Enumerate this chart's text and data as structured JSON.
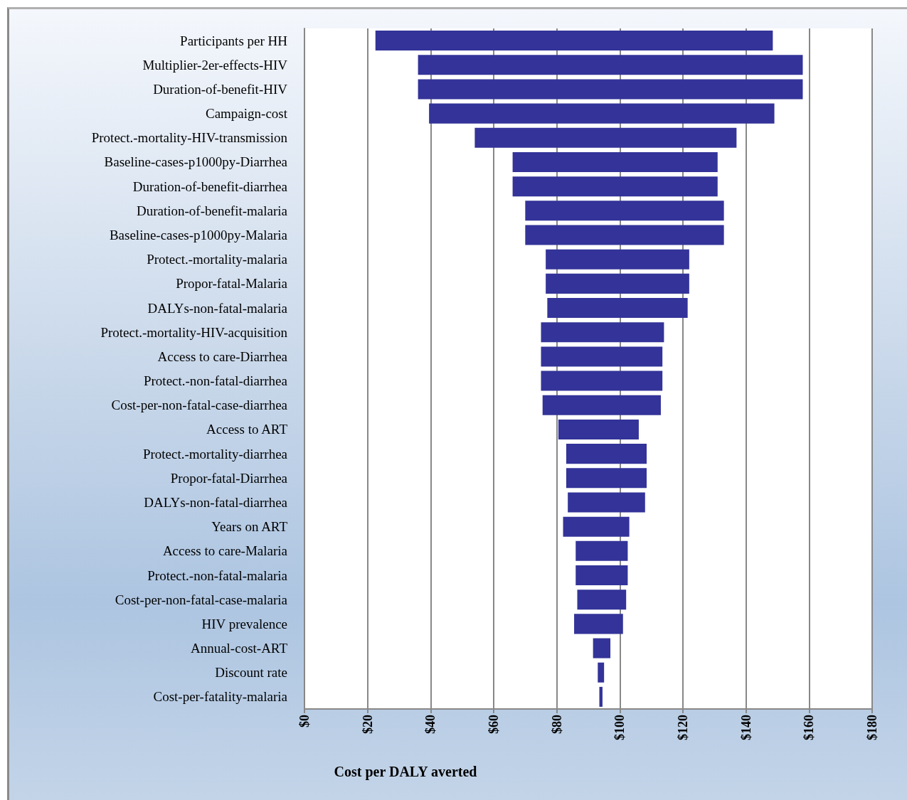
{
  "chart_data": {
    "type": "bar",
    "orientation": "horizontal",
    "xlabel": "Cost per DALY averted",
    "categories": [
      "Participants per HH",
      "Multiplier-2er-effects-HIV",
      "Duration-of-benefit-HIV",
      "Campaign-cost",
      "Protect.-mortality-HIV-transmission",
      "Baseline-cases-p1000py-Diarrhea",
      "Duration-of-benefit-diarrhea",
      "Duration-of-benefit-malaria",
      "Baseline-cases-p1000py-Malaria",
      "Protect.-mortality-malaria",
      "Propor-fatal-Malaria",
      "DALYs-non-fatal-malaria",
      "Protect.-mortality-HIV-acquisition",
      "Access to care-Diarrhea",
      "Protect.-non-fatal-diarrhea",
      "Cost-per-non-fatal-case-diarrhea",
      "Access to ART",
      "Protect.-mortality-diarrhea",
      "Propor-fatal-Diarrhea",
      "DALYs-non-fatal-diarrhea",
      "Years on ART",
      "Access to care-Malaria",
      "Protect.-non-fatal-malaria",
      "Cost-per-non-fatal-case-malaria",
      "HIV prevalence",
      "Annual-cost-ART",
      "Discount rate",
      "Cost-per-fatality-malaria"
    ],
    "base": [
      22.5,
      36,
      36,
      39.5,
      54,
      66,
      66,
      70,
      70,
      76.5,
      76.5,
      77,
      75,
      75,
      75,
      75.5,
      80.5,
      83,
      83,
      83.5,
      82,
      86,
      86,
      86.5,
      85.5,
      91.5,
      93,
      93.5
    ],
    "values": [
      126,
      122,
      122,
      109.5,
      83,
      65,
      65,
      63,
      63,
      45.5,
      45.5,
      44.5,
      39,
      38.5,
      38.5,
      37.5,
      25.5,
      25.5,
      25.5,
      24.5,
      21,
      16.5,
      16.5,
      15.5,
      15.5,
      5.5,
      2,
      1
    ],
    "color": "#333399",
    "xlim": [
      0,
      180
    ],
    "xticks": [
      {
        "value": 0,
        "label": "$0"
      },
      {
        "value": 20,
        "label": "$20"
      },
      {
        "value": 40,
        "label": "$40"
      },
      {
        "value": 60,
        "label": "$60"
      },
      {
        "value": 80,
        "label": "$80"
      },
      {
        "value": 100,
        "label": "$100"
      },
      {
        "value": 120,
        "label": "$120"
      },
      {
        "value": 140,
        "label": "$140"
      },
      {
        "value": 160,
        "label": "$160"
      },
      {
        "value": 180,
        "label": "$180"
      }
    ],
    "grid": "x"
  }
}
